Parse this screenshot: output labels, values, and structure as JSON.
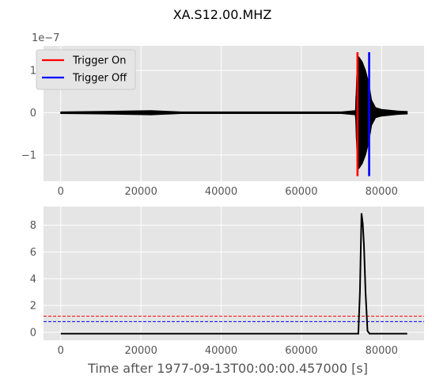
{
  "chart_data": [
    {
      "type": "line",
      "panel": "top",
      "title": "XA.S12.00.MHZ",
      "ylabel": "",
      "xlabel": "",
      "scale_factor_label": "1e−7",
      "xlim": [
        -4300,
        90600
      ],
      "ylim": [
        -1.62,
        1.58
      ],
      "xticks": [
        0,
        20000,
        40000,
        60000,
        80000
      ],
      "xtick_labels": [
        "0",
        "20000",
        "40000",
        "60000",
        "80000"
      ],
      "yticks": [
        1,
        0,
        -1
      ],
      "ytick_labels": [
        "1",
        "0",
        "−1"
      ],
      "grid": true,
      "legend_position": "top-left",
      "series": [
        {
          "name": "seismic trace",
          "color": "#000000",
          "x": [
            0,
            10000,
            22500,
            30000,
            40000,
            50000,
            60000,
            70000,
            73500,
            74000,
            74500,
            75200,
            76000,
            76800,
            77500,
            78500,
            80000,
            84000,
            86400
          ],
          "amplitude": [
            0.02,
            0.03,
            0.05,
            0.02,
            0.02,
            0.02,
            0.02,
            0.02,
            0.05,
            1.35,
            1.3,
            1.2,
            1.0,
            0.7,
            0.3,
            0.12,
            0.08,
            0.04,
            0.03
          ]
        }
      ],
      "vertical_lines": [
        {
          "name": "Trigger On",
          "x": 74000,
          "y": [
            -1.5,
            1.43
          ],
          "color": "#ff0000"
        },
        {
          "name": "Trigger Off",
          "x": 76900,
          "y": [
            -1.5,
            1.43
          ],
          "color": "#0000ff"
        }
      ],
      "legend": [
        {
          "label": "Trigger On",
          "color": "#ff0000"
        },
        {
          "label": "Trigger Off",
          "color": "#0000ff"
        }
      ]
    },
    {
      "type": "line",
      "panel": "bottom",
      "xlabel": "Time after 1977-09-13T00:00:00.457000 [s]",
      "xlim": [
        -4300,
        90600
      ],
      "ylim": [
        -0.6,
        9.4
      ],
      "xticks": [
        0,
        20000,
        40000,
        60000,
        80000
      ],
      "xtick_labels": [
        "0",
        "20000",
        "40000",
        "60000",
        "80000"
      ],
      "yticks": [
        8,
        6,
        4,
        2,
        0
      ],
      "ytick_labels": [
        "8",
        "6",
        "4",
        "2",
        "0"
      ],
      "grid": true,
      "series": [
        {
          "name": "characteristic function",
          "color": "#000000",
          "x": [
            0,
            74200,
            74600,
            75000,
            75300,
            75600,
            76000,
            76500,
            77000,
            80000,
            86400
          ],
          "values": [
            -0.1,
            -0.1,
            3.0,
            8.9,
            8.1,
            6.5,
            3.0,
            0.1,
            -0.1,
            -0.1,
            -0.1
          ]
        }
      ],
      "hlines": [
        {
          "name": "trigger on threshold",
          "y": 1.2,
          "color": "#ff0000",
          "style": "dashed"
        },
        {
          "name": "trigger off threshold",
          "y": 0.8,
          "color": "#0000ff",
          "style": "dashed"
        }
      ]
    }
  ]
}
